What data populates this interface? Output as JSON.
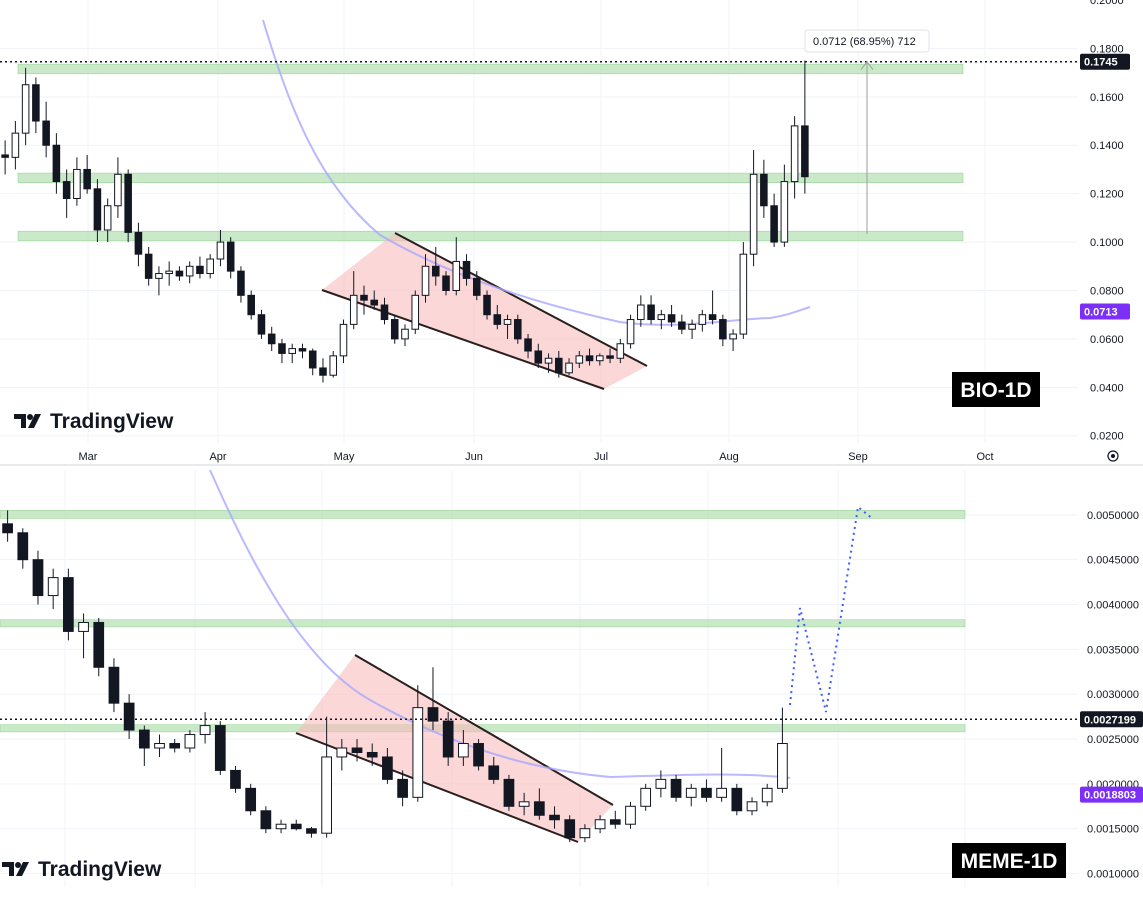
{
  "watermark": "TradingView",
  "chart_data": [
    {
      "type": "candlestick",
      "symbol": "BIO-1D",
      "x_labels": [
        "Mar",
        "Apr",
        "May",
        "Jun",
        "Jul",
        "Aug",
        "Sep",
        "Oct"
      ],
      "y_ticks": [
        "0.2000",
        "0.1800",
        "0.1600",
        "0.1400",
        "0.1200",
        "0.1000",
        "0.0800",
        "0.0600",
        "0.0400",
        "0.0200"
      ],
      "ylim": [
        0.017,
        0.2
      ],
      "last_price_label": "0.1745",
      "last_price": 0.1745,
      "ma_label": "0.0713",
      "ma_value": 0.0713,
      "measure_label": "0.0712 (68.95%) 712",
      "measure_from": 0.1033,
      "measure_to": 0.1745,
      "resistance_zones": [
        [
          0.1695,
          0.1735
        ],
        [
          0.1245,
          0.1285
        ],
        [
          0.1005,
          0.1045
        ]
      ],
      "wedge_upper": [
        [
          0.1033,
          "May"
        ],
        [
          0.0468,
          "Jul"
        ]
      ],
      "wedge_lower": [
        [
          0.0776,
          "May"
        ],
        [
          0.0375,
          "Jul"
        ]
      ],
      "ma_path": [
        [
          0.19,
          "Apr"
        ],
        [
          0.1,
          "May"
        ],
        [
          0.07,
          "Jul"
        ],
        [
          0.0713,
          "Aug"
        ]
      ],
      "candles": [
        [
          0.136,
          0.142,
          0.128,
          0.135
        ],
        [
          0.135,
          0.15,
          0.13,
          0.145
        ],
        [
          0.145,
          0.172,
          0.14,
          0.165
        ],
        [
          0.165,
          0.168,
          0.145,
          0.15
        ],
        [
          0.15,
          0.158,
          0.135,
          0.14
        ],
        [
          0.14,
          0.145,
          0.12,
          0.125
        ],
        [
          0.125,
          0.13,
          0.11,
          0.118
        ],
        [
          0.118,
          0.135,
          0.115,
          0.13
        ],
        [
          0.13,
          0.136,
          0.12,
          0.122
        ],
        [
          0.122,
          0.126,
          0.1,
          0.105
        ],
        [
          0.105,
          0.118,
          0.1,
          0.115
        ],
        [
          0.115,
          0.135,
          0.11,
          0.128
        ],
        [
          0.128,
          0.13,
          0.1,
          0.104
        ],
        [
          0.104,
          0.108,
          0.09,
          0.095
        ],
        [
          0.095,
          0.098,
          0.082,
          0.085
        ],
        [
          0.085,
          0.09,
          0.078,
          0.087
        ],
        [
          0.087,
          0.092,
          0.082,
          0.088
        ],
        [
          0.088,
          0.09,
          0.084,
          0.086
        ],
        [
          0.086,
          0.092,
          0.083,
          0.09
        ],
        [
          0.09,
          0.094,
          0.085,
          0.087
        ],
        [
          0.087,
          0.095,
          0.085,
          0.093
        ],
        [
          0.093,
          0.105,
          0.09,
          0.1
        ],
        [
          0.1,
          0.102,
          0.085,
          0.088
        ],
        [
          0.088,
          0.09,
          0.075,
          0.078
        ],
        [
          0.078,
          0.08,
          0.068,
          0.07
        ],
        [
          0.07,
          0.072,
          0.06,
          0.062
        ],
        [
          0.062,
          0.065,
          0.055,
          0.058
        ],
        [
          0.058,
          0.06,
          0.05,
          0.054
        ],
        [
          0.054,
          0.058,
          0.05,
          0.056
        ],
        [
          0.056,
          0.058,
          0.052,
          0.055
        ],
        [
          0.055,
          0.056,
          0.045,
          0.048
        ],
        [
          0.048,
          0.052,
          0.042,
          0.045
        ],
        [
          0.045,
          0.055,
          0.044,
          0.053
        ],
        [
          0.053,
          0.068,
          0.05,
          0.066
        ],
        [
          0.066,
          0.088,
          0.064,
          0.078
        ],
        [
          0.078,
          0.082,
          0.07,
          0.076
        ],
        [
          0.076,
          0.08,
          0.072,
          0.074
        ],
        [
          0.074,
          0.077,
          0.066,
          0.068
        ],
        [
          0.068,
          0.07,
          0.058,
          0.06
        ],
        [
          0.06,
          0.066,
          0.057,
          0.064
        ],
        [
          0.064,
          0.08,
          0.062,
          0.078
        ],
        [
          0.078,
          0.095,
          0.075,
          0.09
        ],
        [
          0.09,
          0.098,
          0.082,
          0.086
        ],
        [
          0.086,
          0.088,
          0.078,
          0.08
        ],
        [
          0.08,
          0.102,
          0.078,
          0.092
        ],
        [
          0.092,
          0.095,
          0.082,
          0.085
        ],
        [
          0.085,
          0.088,
          0.076,
          0.078
        ],
        [
          0.078,
          0.08,
          0.068,
          0.07
        ],
        [
          0.07,
          0.074,
          0.064,
          0.066
        ],
        [
          0.066,
          0.07,
          0.06,
          0.068
        ],
        [
          0.068,
          0.07,
          0.058,
          0.06
        ],
        [
          0.06,
          0.062,
          0.052,
          0.055
        ],
        [
          0.055,
          0.058,
          0.048,
          0.05
        ],
        [
          0.05,
          0.054,
          0.046,
          0.052
        ],
        [
          0.052,
          0.055,
          0.044,
          0.046
        ],
        [
          0.046,
          0.052,
          0.045,
          0.05
        ],
        [
          0.05,
          0.055,
          0.048,
          0.053
        ],
        [
          0.053,
          0.056,
          0.049,
          0.051
        ],
        [
          0.051,
          0.054,
          0.049,
          0.053
        ],
        [
          0.053,
          0.056,
          0.05,
          0.052
        ],
        [
          0.052,
          0.06,
          0.05,
          0.058
        ],
        [
          0.058,
          0.07,
          0.056,
          0.068
        ],
        [
          0.068,
          0.078,
          0.065,
          0.074
        ],
        [
          0.074,
          0.078,
          0.066,
          0.068
        ],
        [
          0.068,
          0.072,
          0.064,
          0.07
        ],
        [
          0.07,
          0.074,
          0.065,
          0.067
        ],
        [
          0.067,
          0.07,
          0.062,
          0.064
        ],
        [
          0.064,
          0.068,
          0.06,
          0.066
        ],
        [
          0.066,
          0.072,
          0.063,
          0.07
        ],
        [
          0.07,
          0.08,
          0.066,
          0.068
        ],
        [
          0.068,
          0.07,
          0.057,
          0.06
        ],
        [
          0.06,
          0.064,
          0.055,
          0.062
        ],
        [
          0.062,
          0.1,
          0.06,
          0.095
        ],
        [
          0.095,
          0.138,
          0.09,
          0.128
        ],
        [
          0.128,
          0.134,
          0.11,
          0.115
        ],
        [
          0.115,
          0.12,
          0.098,
          0.1
        ],
        [
          0.1,
          0.132,
          0.098,
          0.125
        ],
        [
          0.125,
          0.152,
          0.118,
          0.148
        ],
        [
          0.148,
          0.175,
          0.12,
          0.127
        ]
      ]
    },
    {
      "type": "candlestick",
      "symbol": "MEME-1D",
      "y_ticks": [
        "0.0050000",
        "0.0045000",
        "0.0040000",
        "0.0035000",
        "0.0030000",
        "0.0025000",
        "0.0020000",
        "0.0015000",
        "0.0010000"
      ],
      "ylim": [
        0.00085,
        0.0055
      ],
      "last_price_label": "0.0027199",
      "last_price": 0.0027199,
      "ma_label": "0.0018803",
      "ma_value": 0.0018803,
      "resistance_zones": [
        [
          0.00496,
          0.00505
        ],
        [
          0.00375,
          0.00383
        ],
        [
          0.00258,
          0.00266
        ]
      ],
      "projection": [
        [
          0.00275,
          0
        ],
        [
          0.0038,
          1
        ],
        [
          0.00265,
          2
        ],
        [
          0.00505,
          3
        ],
        [
          0.0049,
          4
        ]
      ],
      "candles": [
        [
          0.0049,
          0.00505,
          0.0047,
          0.0048
        ],
        [
          0.0048,
          0.00485,
          0.0044,
          0.0045
        ],
        [
          0.0045,
          0.0046,
          0.004,
          0.0041
        ],
        [
          0.0041,
          0.0044,
          0.00395,
          0.0043
        ],
        [
          0.0043,
          0.0044,
          0.0036,
          0.0037
        ],
        [
          0.0037,
          0.0039,
          0.0034,
          0.0038
        ],
        [
          0.0038,
          0.00385,
          0.0032,
          0.0033
        ],
        [
          0.0033,
          0.0034,
          0.0028,
          0.0029
        ],
        [
          0.0029,
          0.003,
          0.0025,
          0.0026
        ],
        [
          0.0026,
          0.00265,
          0.0022,
          0.0024
        ],
        [
          0.0024,
          0.00255,
          0.0023,
          0.00245
        ],
        [
          0.00245,
          0.0025,
          0.00235,
          0.0024
        ],
        [
          0.0024,
          0.0026,
          0.00235,
          0.00255
        ],
        [
          0.00255,
          0.0028,
          0.00245,
          0.00265
        ],
        [
          0.00265,
          0.0027,
          0.0021,
          0.00215
        ],
        [
          0.00215,
          0.0022,
          0.0019,
          0.00195
        ],
        [
          0.00195,
          0.002,
          0.00165,
          0.0017
        ],
        [
          0.0017,
          0.00175,
          0.00145,
          0.0015
        ],
        [
          0.0015,
          0.0016,
          0.00145,
          0.00155
        ],
        [
          0.00155,
          0.0016,
          0.00148,
          0.0015
        ],
        [
          0.0015,
          0.00152,
          0.0014,
          0.00145
        ],
        [
          0.00145,
          0.00275,
          0.0014,
          0.0023
        ],
        [
          0.0023,
          0.0025,
          0.00215,
          0.0024
        ],
        [
          0.0024,
          0.0025,
          0.00225,
          0.00235
        ],
        [
          0.00235,
          0.00245,
          0.0022,
          0.0023
        ],
        [
          0.0023,
          0.0024,
          0.002,
          0.00205
        ],
        [
          0.00205,
          0.00215,
          0.00175,
          0.00185
        ],
        [
          0.00185,
          0.0031,
          0.0018,
          0.00285
        ],
        [
          0.00285,
          0.0033,
          0.0026,
          0.0027
        ],
        [
          0.0027,
          0.0028,
          0.0022,
          0.0023
        ],
        [
          0.0023,
          0.0026,
          0.0022,
          0.00245
        ],
        [
          0.00245,
          0.0025,
          0.00215,
          0.0022
        ],
        [
          0.0022,
          0.0023,
          0.002,
          0.00205
        ],
        [
          0.00205,
          0.0021,
          0.0017,
          0.00175
        ],
        [
          0.00175,
          0.0019,
          0.00165,
          0.0018
        ],
        [
          0.0018,
          0.00195,
          0.0016,
          0.00165
        ],
        [
          0.00165,
          0.00175,
          0.0015,
          0.0016
        ],
        [
          0.0016,
          0.00165,
          0.00135,
          0.0014
        ],
        [
          0.0014,
          0.00155,
          0.00135,
          0.0015
        ],
        [
          0.0015,
          0.00165,
          0.00145,
          0.0016
        ],
        [
          0.0016,
          0.0017,
          0.0015,
          0.00155
        ],
        [
          0.00155,
          0.0018,
          0.0015,
          0.00175
        ],
        [
          0.00175,
          0.002,
          0.0017,
          0.00195
        ],
        [
          0.00195,
          0.00215,
          0.00185,
          0.00205
        ],
        [
          0.00205,
          0.0021,
          0.0018,
          0.00185
        ],
        [
          0.00185,
          0.002,
          0.00175,
          0.00195
        ],
        [
          0.00195,
          0.00205,
          0.0018,
          0.00185
        ],
        [
          0.00185,
          0.0024,
          0.0018,
          0.00195
        ],
        [
          0.00195,
          0.002,
          0.00165,
          0.0017
        ],
        [
          0.0017,
          0.00185,
          0.00165,
          0.0018
        ],
        [
          0.0018,
          0.002,
          0.00175,
          0.00195
        ],
        [
          0.00195,
          0.00285,
          0.0019,
          0.00245
        ]
      ]
    }
  ]
}
